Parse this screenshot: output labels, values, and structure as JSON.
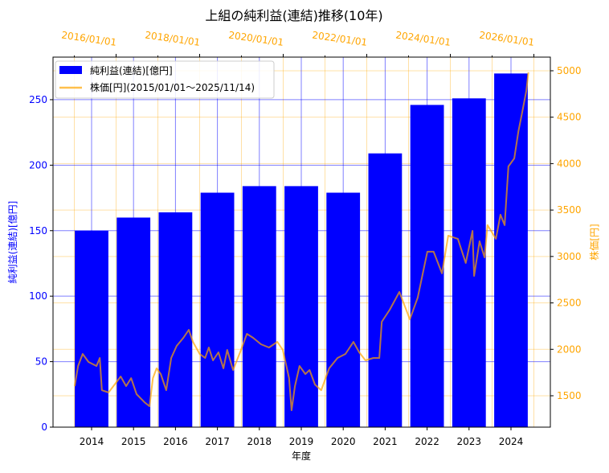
{
  "chart_data": {
    "type": "bar+line",
    "title": "上組の純利益(連結)推移(10年)",
    "xlabel": "年度",
    "ylabel_left": "純利益(連結)[億円]",
    "ylabel_right": "株価[円]",
    "categories": [
      "2014",
      "2015",
      "2016",
      "2017",
      "2018",
      "2019",
      "2020",
      "2021",
      "2022",
      "2023",
      "2024"
    ],
    "bar_series": {
      "name": "純利益(連結)[億円]",
      "color": "#0000ff",
      "values": [
        150,
        160,
        164,
        179,
        184,
        184,
        179,
        209,
        246,
        251,
        270
      ]
    },
    "line_series": {
      "name": "株価[円](2015/01/01～2025/11/14)",
      "color": "#ffa500",
      "x": [
        2015.01,
        2015.09,
        2015.2,
        2015.34,
        2015.53,
        2015.61,
        2015.66,
        2015.82,
        2016.01,
        2016.11,
        2016.24,
        2016.36,
        2016.49,
        2016.68,
        2016.8,
        2016.88,
        2016.97,
        2017.07,
        2017.2,
        2017.32,
        2017.45,
        2017.61,
        2017.74,
        2017.84,
        2018.0,
        2018.13,
        2018.22,
        2018.32,
        2018.45,
        2018.57,
        2018.66,
        2018.8,
        2018.99,
        2019.13,
        2019.28,
        2019.47,
        2019.66,
        2019.86,
        2019.99,
        2020.14,
        2020.2,
        2020.28,
        2020.39,
        2020.53,
        2020.63,
        2020.76,
        2020.91,
        2021.1,
        2021.3,
        2021.49,
        2021.68,
        2021.82,
        2021.97,
        2022.16,
        2022.3,
        2022.36,
        2022.55,
        2022.78,
        2023.03,
        2023.22,
        2023.45,
        2023.6,
        2023.8,
        2023.95,
        2024.18,
        2024.37,
        2024.53,
        2024.57,
        2024.7,
        2024.82,
        2024.89,
        2025.09,
        2025.2,
        2025.3,
        2025.39,
        2025.53,
        2025.63,
        2025.72,
        2025.82,
        2025.87
      ],
      "y": [
        1604,
        1820,
        1950,
        1864,
        1820,
        1907,
        1560,
        1535,
        1647,
        1708,
        1604,
        1690,
        1517,
        1430,
        1387,
        1690,
        1795,
        1734,
        1560,
        1907,
        2037,
        2124,
        2210,
        2080,
        1950,
        1907,
        2020,
        1881,
        1968,
        1795,
        1994,
        1777,
        1994,
        2167,
        2124,
        2054,
        2020,
        2080,
        1994,
        1690,
        1344,
        1604,
        1820,
        1734,
        1777,
        1621,
        1560,
        1795,
        1907,
        1950,
        2080,
        1968,
        1881,
        1907,
        1907,
        2297,
        2427,
        2618,
        2323,
        2557,
        3051,
        3051,
        2818,
        3224,
        3190,
        2930,
        3276,
        2791,
        3164,
        2990,
        3337,
        3190,
        3450,
        3337,
        3970,
        4056,
        4351,
        4550,
        4784,
        4983
      ]
    },
    "ylim_left": [
      0,
      282.5
    ],
    "ylim_right": [
      1162,
      5147
    ],
    "yticks_left": [
      "0",
      "50",
      "100",
      "150",
      "200",
      "250"
    ],
    "yticks_right": [
      "1500",
      "2000",
      "2500",
      "3000",
      "3500",
      "4000",
      "4500",
      "5000"
    ],
    "top_xticks": [
      "2016/01/01",
      "2018/01/01",
      "2020/01/01",
      "2022/01/01",
      "2024/01/01",
      "2026/01/01"
    ],
    "legend": [
      "純利益(連結)[億円]",
      "株価[円](2015/01/01～2025/11/14)"
    ],
    "legend_position": "top-left",
    "grid": true
  }
}
